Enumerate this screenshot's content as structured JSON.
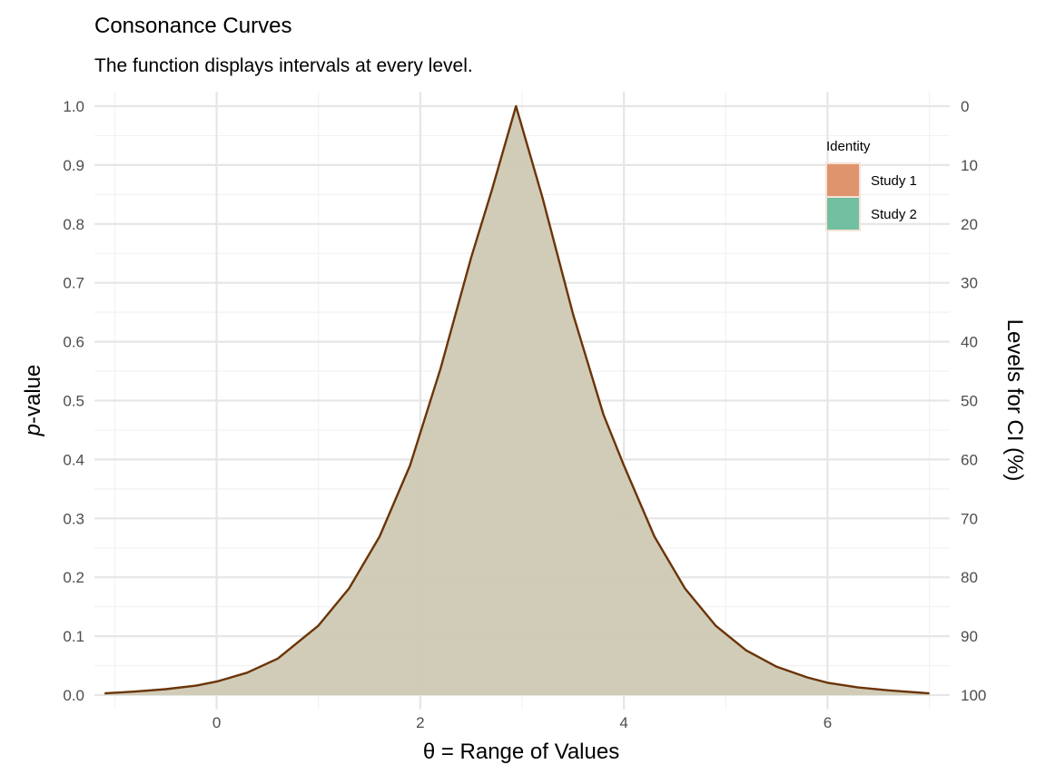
{
  "chart_data": {
    "type": "area",
    "title": "Consonance Curves",
    "subtitle": "The function displays intervals at every level.",
    "xlabel": "θ =  Range of Values",
    "ylabel_prefix": "p",
    "ylabel_suffix": "-value",
    "y2label": "Levels for CI (%)",
    "xlim": [
      -1.2,
      7.2
    ],
    "ylim": [
      0,
      1
    ],
    "x_ticks": [
      0,
      2,
      4,
      6
    ],
    "y_ticks": [
      0.0,
      0.1,
      0.2,
      0.3,
      0.4,
      0.5,
      0.6,
      0.7,
      0.8,
      0.9,
      1.0
    ],
    "y_tick_labels": [
      "0.0",
      "0.1",
      "0.2",
      "0.3",
      "0.4",
      "0.5",
      "0.6",
      "0.7",
      "0.8",
      "0.9",
      "1.0"
    ],
    "y2_tick_labels": [
      "100",
      "90",
      "80",
      "70",
      "60",
      "50",
      "40",
      "30",
      "20",
      "10",
      "0"
    ],
    "grid": true,
    "legend": {
      "title": "Identity",
      "position": "top-right",
      "entries": [
        {
          "label": "Study 1",
          "color": "#E0946E"
        },
        {
          "label": "Study 2",
          "color": "#72BFA1"
        }
      ]
    },
    "series": [
      {
        "name": "Study 1",
        "x": [
          -1.1,
          -0.8,
          -0.5,
          -0.2,
          0.0,
          0.3,
          0.6,
          1.0,
          1.3,
          1.6,
          1.9,
          2.2,
          2.5,
          2.7,
          2.94,
          3.2,
          3.5,
          3.8,
          4.0,
          4.3,
          4.6,
          4.9,
          5.2,
          5.5,
          5.8,
          6.0,
          6.3,
          6.6,
          7.0
        ],
        "y": [
          0.003,
          0.006,
          0.01,
          0.016,
          0.023,
          0.038,
          0.062,
          0.118,
          0.181,
          0.269,
          0.39,
          0.555,
          0.743,
          0.856,
          1.0,
          0.845,
          0.647,
          0.476,
          0.39,
          0.269,
          0.181,
          0.118,
          0.076,
          0.048,
          0.03,
          0.021,
          0.013,
          0.008,
          0.003
        ],
        "fill": "#CEC9B3",
        "line": "#6B3408"
      }
    ]
  }
}
